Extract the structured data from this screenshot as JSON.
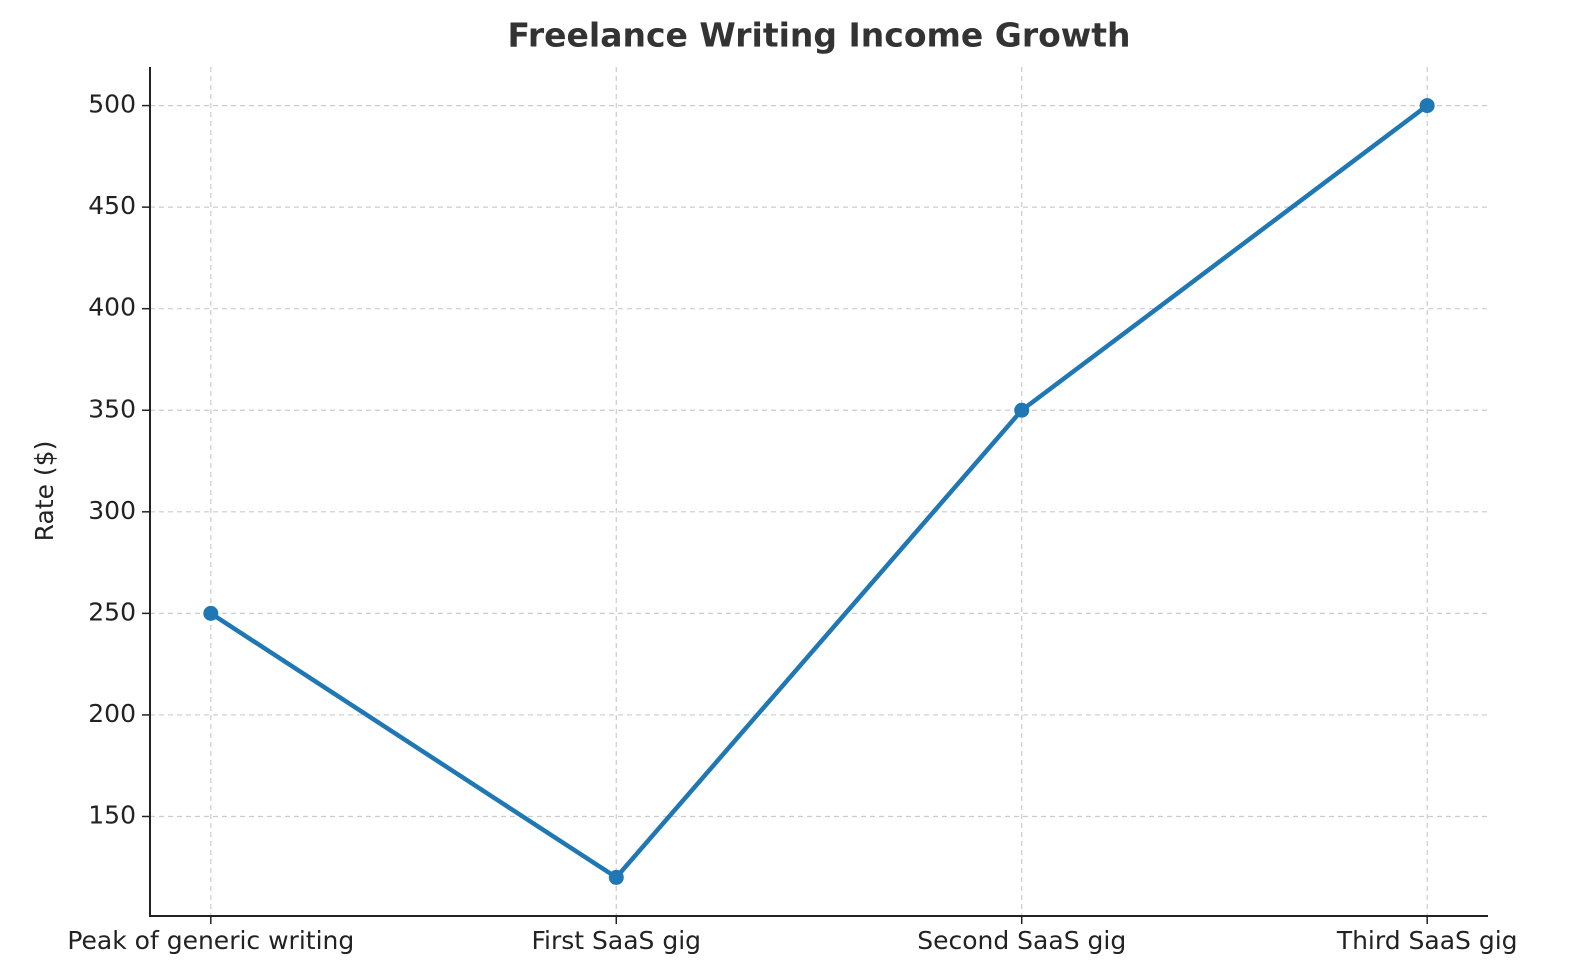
{
  "chart_data": {
    "type": "line",
    "title": "Freelance Writing Income Growth",
    "y_label": "Rate ($)",
    "categories": [
      "Peak of generic writing",
      "First SaaS gig",
      "Second SaaS gig",
      "Third SaaS gig"
    ],
    "values": [
      250,
      120,
      350,
      500
    ],
    "color": "#1f77b4",
    "ylim": [
      101,
      519
    ],
    "yticks": [
      150,
      200,
      250,
      300,
      350,
      400,
      450,
      500
    ],
    "grid": true
  }
}
